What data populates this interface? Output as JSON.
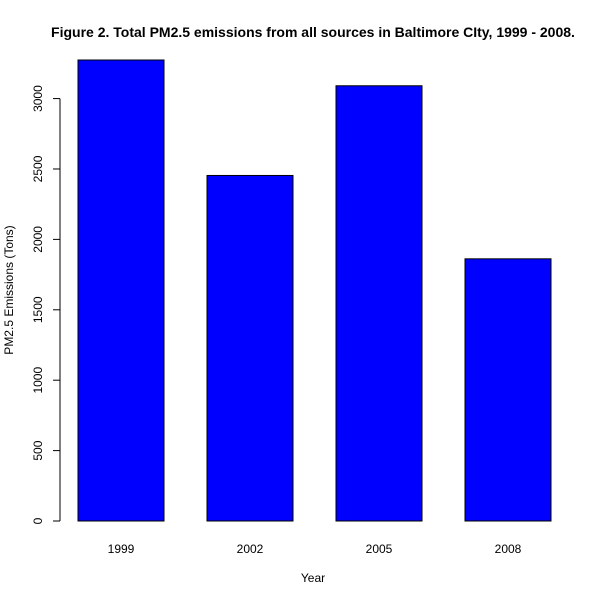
{
  "chart_data": {
    "type": "bar",
    "title": "Figure 2. Total PM2.5 emissions from all sources in Baltimore CIty, 1999 - 2008.",
    "xlabel": "Year",
    "ylabel": "PM2.5 Emissions (Tons)",
    "categories": [
      "1999",
      "2002",
      "2005",
      "2008"
    ],
    "values": [
      3274,
      2454,
      3091,
      1862
    ],
    "ylim": [
      0,
      3274
    ],
    "yticks": [
      0,
      500,
      1000,
      1500,
      2000,
      2500,
      3000
    ],
    "grid": false,
    "legend": "none",
    "colors": {
      "bar_fill": "#0000FF",
      "bar_border": "#000000"
    }
  }
}
